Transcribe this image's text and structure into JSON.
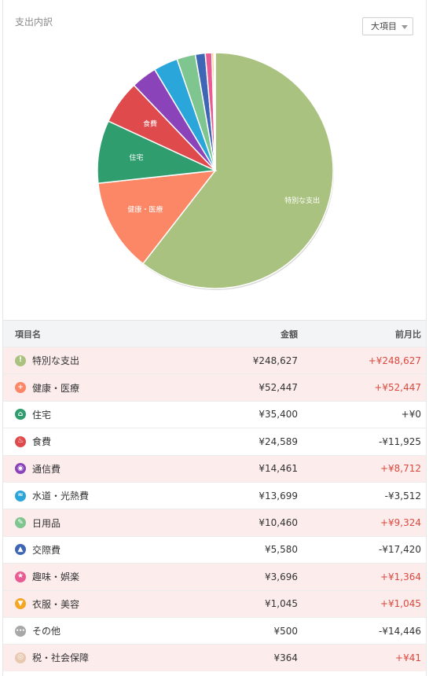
{
  "panel": {
    "title": "支出内訳",
    "dropdown_value": "大項目"
  },
  "chart_data": {
    "type": "pie",
    "slices": [
      {
        "label": "特別な支出",
        "value": 248627,
        "color": "#aac27f",
        "text": "特別な支出"
      },
      {
        "label": "健康・医療",
        "value": 52447,
        "color": "#fb8766",
        "text": "健康・医療"
      },
      {
        "label": "住宅",
        "value": 35400,
        "color": "#2f9d6e",
        "text": "住宅"
      },
      {
        "label": "食費",
        "value": 24589,
        "color": "#df4a4d",
        "text": "食費"
      },
      {
        "label": "通信費",
        "value": 14461,
        "color": "#8a43b8",
        "text": ""
      },
      {
        "label": "水道・光熱費",
        "value": 13699,
        "color": "#2ba6db",
        "text": ""
      },
      {
        "label": "日用品",
        "value": 10460,
        "color": "#7fc58f",
        "text": ""
      },
      {
        "label": "交際費",
        "value": 5580,
        "color": "#3f66b5",
        "text": ""
      },
      {
        "label": "趣味・娯楽",
        "value": 3696,
        "color": "#e85c93",
        "text": ""
      },
      {
        "label": "衣服・美容",
        "value": 1045,
        "color": "#f5a623",
        "text": ""
      },
      {
        "label": "その他",
        "value": 500,
        "color": "#a8a8a8",
        "text": ""
      },
      {
        "label": "税・社会保障",
        "value": 364,
        "color": "#e8c9b0",
        "text": ""
      }
    ]
  },
  "table": {
    "headers": {
      "name": "項目名",
      "amount": "金額",
      "diff": "前月比"
    },
    "rows": [
      {
        "name": "特別な支出",
        "amount": "¥248,627",
        "diff": "+¥248,627",
        "icon": "exclamation-icon",
        "glyph": "!",
        "color": "#aac27f",
        "up": true
      },
      {
        "name": "健康・医療",
        "amount": "¥52,447",
        "diff": "+¥52,447",
        "icon": "medical-cross-icon",
        "glyph": "+",
        "color": "#fb8766",
        "up": true
      },
      {
        "name": "住宅",
        "amount": "¥35,400",
        "diff": "+¥0",
        "icon": "house-icon",
        "glyph": "⌂",
        "color": "#2f9d6e",
        "up": false
      },
      {
        "name": "食費",
        "amount": "¥24,589",
        "diff": "-¥11,925",
        "icon": "fork-knife-icon",
        "glyph": "♨",
        "color": "#df4a4d",
        "up": false
      },
      {
        "name": "通信費",
        "amount": "¥14,461",
        "diff": "+¥8,712",
        "icon": "antenna-icon",
        "glyph": "◉",
        "color": "#8a43b8",
        "up": true
      },
      {
        "name": "水道・光熱費",
        "amount": "¥13,699",
        "diff": "-¥3,512",
        "icon": "faucet-icon",
        "glyph": "≈",
        "color": "#2ba6db",
        "up": false
      },
      {
        "name": "日用品",
        "amount": "¥10,460",
        "diff": "+¥9,324",
        "icon": "pencil-icon",
        "glyph": "✎",
        "color": "#7fc58f",
        "up": true
      },
      {
        "name": "交際費",
        "amount": "¥5,580",
        "diff": "-¥17,420",
        "icon": "cake-icon",
        "glyph": "▲",
        "color": "#3f66b5",
        "up": false
      },
      {
        "name": "趣味・娯楽",
        "amount": "¥3,696",
        "diff": "+¥1,364",
        "icon": "star-icon",
        "glyph": "★",
        "color": "#e85c93",
        "up": true
      },
      {
        "name": "衣服・美容",
        "amount": "¥1,045",
        "diff": "+¥1,045",
        "icon": "shirt-icon",
        "glyph": "▼",
        "color": "#f5a623",
        "up": true
      },
      {
        "name": "その他",
        "amount": "¥500",
        "diff": "-¥14,446",
        "icon": "ellipsis-icon",
        "glyph": "•••",
        "color": "#a8a8a8",
        "up": false
      },
      {
        "name": "税・社会保障",
        "amount": "¥364",
        "diff": "+¥41",
        "icon": "tax-icon",
        "glyph": "◎",
        "color": "#e8c9b0",
        "up": true
      }
    ]
  }
}
